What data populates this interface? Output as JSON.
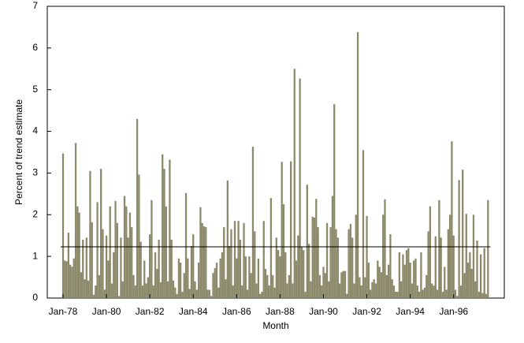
{
  "chart_data": {
    "type": "bar",
    "x_label": "Month",
    "y_label": "Percent of trend estimate",
    "color": "#8c8a6a",
    "reference_line": 1.23,
    "reference_color": "#000000",
    "ylim": [
      0,
      7
    ],
    "yticks": [
      0,
      1,
      2,
      3,
      4,
      5,
      6,
      7
    ],
    "categories": [
      "Jan-78",
      null,
      null,
      null,
      null,
      null,
      null,
      null,
      null,
      null,
      null,
      null,
      null,
      null,
      null,
      null,
      null,
      null,
      null,
      null,
      null,
      null,
      null,
      null,
      "Jan-80",
      null,
      null,
      null,
      null,
      null,
      null,
      null,
      null,
      null,
      null,
      null,
      null,
      null,
      null,
      null,
      null,
      null,
      null,
      null,
      null,
      null,
      null,
      null,
      "Jan-82",
      null,
      null,
      null,
      null,
      null,
      null,
      null,
      null,
      null,
      null,
      null,
      null,
      null,
      null,
      null,
      null,
      null,
      null,
      null,
      null,
      null,
      null,
      null,
      "Jan-84",
      null,
      null,
      null,
      null,
      null,
      null,
      null,
      null,
      null,
      null,
      null,
      null,
      null,
      null,
      null,
      null,
      null,
      null,
      null,
      null,
      null,
      null,
      null,
      "Jan-86",
      null,
      null,
      null,
      null,
      null,
      null,
      null,
      null,
      null,
      null,
      null,
      null,
      null,
      null,
      null,
      null,
      null,
      null,
      null,
      null,
      null,
      null,
      null,
      "Jan-88",
      null,
      null,
      null,
      null,
      null,
      null,
      null,
      null,
      null,
      null,
      null,
      null,
      null,
      null,
      null,
      null,
      null,
      null,
      null,
      null,
      null,
      null,
      null,
      "Jan-90",
      null,
      null,
      null,
      null,
      null,
      null,
      null,
      null,
      null,
      null,
      null,
      null,
      null,
      null,
      null,
      null,
      null,
      null,
      null,
      null,
      null,
      null,
      null,
      "Jan-92",
      null,
      null,
      null,
      null,
      null,
      null,
      null,
      null,
      null,
      null,
      null,
      null,
      null,
      null,
      null,
      null,
      null,
      null,
      null,
      null,
      null,
      null,
      null,
      "Jan-94",
      null,
      null,
      null,
      null,
      null,
      null,
      null,
      null,
      null,
      null,
      null,
      null,
      null,
      null,
      null,
      null,
      null,
      null,
      null,
      null,
      null,
      null,
      null,
      "Jan-96",
      null,
      null,
      null,
      null,
      null,
      null,
      null,
      null,
      null,
      null,
      null,
      null,
      null,
      null,
      null,
      null,
      null,
      null,
      null
    ],
    "values": [
      3.47,
      0.9,
      0.88,
      1.57,
      0.8,
      0.75,
      0.95,
      3.72,
      2.2,
      2.05,
      0.62,
      1.4,
      0.45,
      1.45,
      0.42,
      3.05,
      1.82,
      0.08,
      0.3,
      2.3,
      0.55,
      3.1,
      1.65,
      0.2,
      1.5,
      0.9,
      2.2,
      0.35,
      1.1,
      2.33,
      1.8,
      0.05,
      1.45,
      0.4,
      2.45,
      2.2,
      1.45,
      2.05,
      1.7,
      0.55,
      0.3,
      4.3,
      2.96,
      1.35,
      0.3,
      0.9,
      0.35,
      0.5,
      1.53,
      2.35,
      0.3,
      1.1,
      0.7,
      1.4,
      0.38,
      3.45,
      3.1,
      2.2,
      0.4,
      3.32,
      1.4,
      0.42,
      0.25,
      0.1,
      0.95,
      0.85,
      0.15,
      0.6,
      2.52,
      0.95,
      0.22,
      1.25,
      1.53,
      0.4,
      0.2,
      0.85,
      2.18,
      1.8,
      1.72,
      1.7,
      0.2,
      0.2,
      0.05,
      0.6,
      0.72,
      0.85,
      0.25,
      0.95,
      1.1,
      1.7,
      0.45,
      2.82,
      1.25,
      1.65,
      0.3,
      1.85,
      0.95,
      1.85,
      1.4,
      0.3,
      1.8,
      1.0,
      0.2,
      1.0,
      0.6,
      3.63,
      1.6,
      0.35,
      0.95,
      0.1,
      0.15,
      1.85,
      0.7,
      0.55,
      0.3,
      2.4,
      0.55,
      0.25,
      1.45,
      1.15,
      1.0,
      3.27,
      2.25,
      1.1,
      0.35,
      0.55,
      3.28,
      0.35,
      5.5,
      0.9,
      1.5,
      5.27,
      1.22,
      1.15,
      0.15,
      2.72,
      1.3,
      0.4,
      1.95,
      1.93,
      2.38,
      1.7,
      0.55,
      0.3,
      0.75,
      0.6,
      1.8,
      0.4,
      1.7,
      2.45,
      4.65,
      1.65,
      1.45,
      0.35,
      0.62,
      0.65,
      0.65,
      0.1,
      1.65,
      1.78,
      1.45,
      0.35,
      2.0,
      6.38,
      0.5,
      0.3,
      3.55,
      0.5,
      1.97,
      0.85,
      0.2,
      0.38,
      0.45,
      0.35,
      0.9,
      0.75,
      0.62,
      2.0,
      2.37,
      0.55,
      0.8,
      1.53,
      0.45,
      0.3,
      0.15,
      0.15,
      1.1,
      0.4,
      1.05,
      0.8,
      1.15,
      1.2,
      0.85,
      0.35,
      0.9,
      0.95,
      0.3,
      0.15,
      1.1,
      0.2,
      0.25,
      0.55,
      1.6,
      2.2,
      0.35,
      0.3,
      1.48,
      0.2,
      2.35,
      1.45,
      0.15,
      0.75,
      0.2,
      1.65,
      2.0,
      3.76,
      1.5,
      0.2,
      0.05,
      2.83,
      0.3,
      3.08,
      0.6,
      2.02,
      0.85,
      1.1,
      0.7,
      2.0,
      0.4,
      1.38,
      0.15,
      1.05,
      0.12,
      1.2,
      0.1,
      2.35
    ]
  }
}
